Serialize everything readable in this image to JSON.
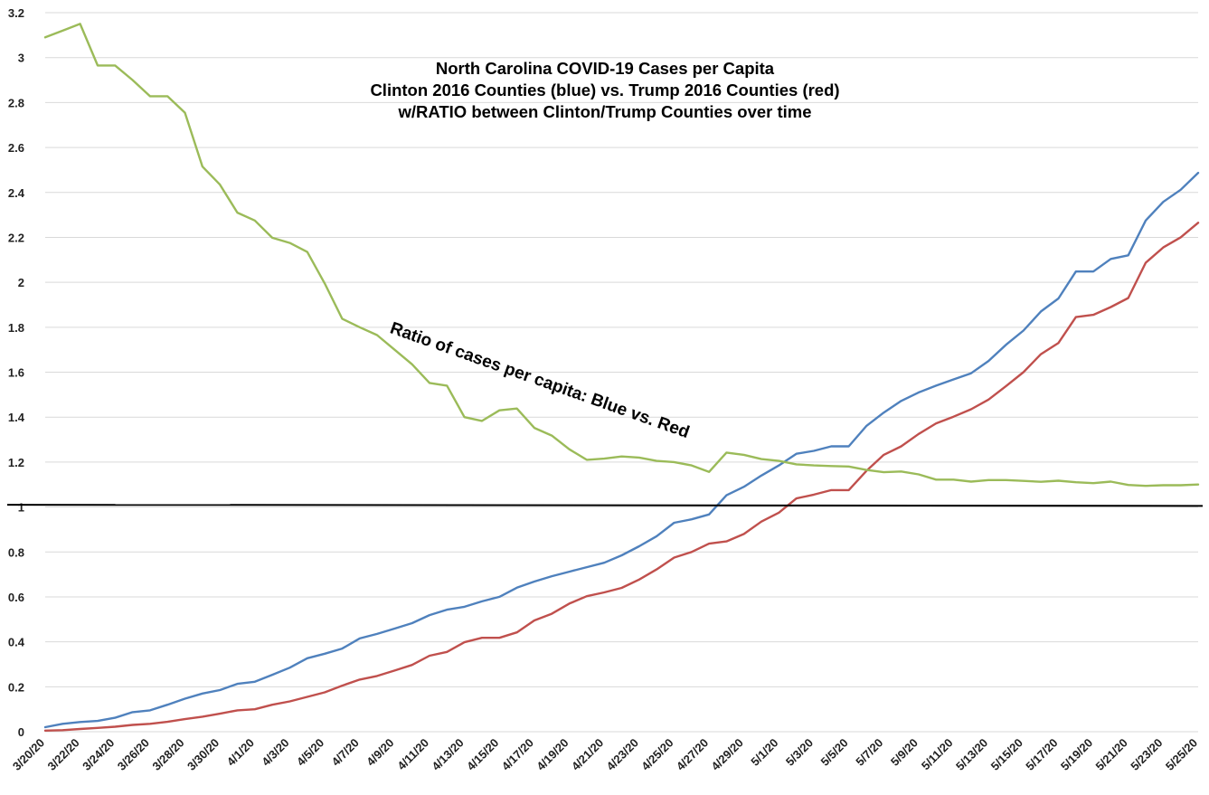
{
  "chart_data": {
    "type": "line",
    "title": [
      "North Carolina COVID-19 Cases per Capita",
      "Clinton 2016 Counties (blue) vs. Trump 2016 Counties (red)",
      "w/RATIO between Clinton/Trump Counties over time"
    ],
    "annotation": "Ratio of cases per capita: Blue vs. Red",
    "xlabel": "",
    "ylabel": "",
    "ylim": [
      0,
      3.2
    ],
    "yticks": [
      "0",
      "0.2",
      "0.4",
      "0.6",
      "0.8",
      "1",
      "1.2",
      "1.4",
      "1.6",
      "1.8",
      "2",
      "2.2",
      "2.4",
      "2.6",
      "2.8",
      "3",
      "3.2"
    ],
    "grid": true,
    "reference_line": {
      "y_start": 1.01,
      "y_end": 1.005,
      "color": "#000000"
    },
    "x": [
      "3/20/20",
      "3/21/20",
      "3/22/20",
      "3/23/20",
      "3/24/20",
      "3/25/20",
      "3/26/20",
      "3/27/20",
      "3/28/20",
      "3/29/20",
      "3/30/20",
      "3/31/20",
      "4/1/20",
      "4/2/20",
      "4/3/20",
      "4/4/20",
      "4/5/20",
      "4/6/20",
      "4/7/20",
      "4/8/20",
      "4/9/20",
      "4/10/20",
      "4/11/20",
      "4/12/20",
      "4/13/20",
      "4/14/20",
      "4/15/20",
      "4/16/20",
      "4/17/20",
      "4/18/20",
      "4/19/20",
      "4/20/20",
      "4/21/20",
      "4/22/20",
      "4/23/20",
      "4/24/20",
      "4/25/20",
      "4/26/20",
      "4/27/20",
      "4/28/20",
      "4/29/20",
      "4/30/20",
      "5/1/20",
      "5/2/20",
      "5/3/20",
      "5/4/20",
      "5/5/20",
      "5/6/20",
      "5/7/20",
      "5/8/20",
      "5/9/20",
      "5/10/20",
      "5/11/20",
      "5/12/20",
      "5/13/20",
      "5/14/20",
      "5/15/20",
      "5/16/20",
      "5/17/20",
      "5/18/20",
      "5/19/20",
      "5/20/20",
      "5/21/20",
      "5/22/20",
      "5/23/20",
      "5/24/20",
      "5/25/20"
    ],
    "xtick_labels": [
      "3/20/20",
      "3/22/20",
      "3/24/20",
      "3/26/20",
      "3/28/20",
      "3/30/20",
      "4/1/20",
      "4/3/20",
      "4/5/20",
      "4/7/20",
      "4/9/20",
      "4/11/20",
      "4/13/20",
      "4/15/20",
      "4/17/20",
      "4/19/20",
      "4/21/20",
      "4/23/20",
      "4/25/20",
      "4/27/20",
      "4/29/20",
      "5/1/20",
      "5/3/20",
      "5/5/20",
      "5/7/20",
      "5/9/20",
      "5/11/20",
      "5/13/20",
      "5/15/20",
      "5/17/20",
      "5/19/20",
      "5/21/20",
      "5/23/20",
      "5/25/20"
    ],
    "series": [
      {
        "color": "#4f81bd",
        "values": [
          0.02,
          0.035,
          0.043,
          0.048,
          0.062,
          0.087,
          0.095,
          0.12,
          0.147,
          0.17,
          0.185,
          0.213,
          0.222,
          0.253,
          0.285,
          0.327,
          0.347,
          0.37,
          0.415,
          0.435,
          0.459,
          0.483,
          0.519,
          0.543,
          0.556,
          0.58,
          0.6,
          0.641,
          0.668,
          0.692,
          0.712,
          0.732,
          0.752,
          0.785,
          0.825,
          0.87,
          0.93,
          0.945,
          0.967,
          1.052,
          1.09,
          1.14,
          1.185,
          1.237,
          1.25,
          1.27,
          1.27,
          1.36,
          1.42,
          1.472,
          1.51,
          1.54,
          1.568,
          1.595,
          1.65,
          1.722,
          1.785,
          1.87,
          1.928,
          2.048,
          2.048,
          2.104,
          2.12,
          2.275,
          2.358,
          2.412,
          2.487
        ]
      },
      {
        "color": "#c0504d",
        "values": [
          0.005,
          0.007,
          0.012,
          0.017,
          0.022,
          0.03,
          0.035,
          0.044,
          0.056,
          0.067,
          0.08,
          0.095,
          0.1,
          0.12,
          0.135,
          0.155,
          0.175,
          0.205,
          0.232,
          0.248,
          0.272,
          0.297,
          0.338,
          0.355,
          0.398,
          0.418,
          0.418,
          0.442,
          0.495,
          0.525,
          0.57,
          0.603,
          0.62,
          0.64,
          0.677,
          0.722,
          0.775,
          0.8,
          0.837,
          0.847,
          0.88,
          0.935,
          0.975,
          1.038,
          1.055,
          1.075,
          1.075,
          1.16,
          1.232,
          1.27,
          1.325,
          1.372,
          1.402,
          1.435,
          1.478,
          1.538,
          1.6,
          1.68,
          1.73,
          1.845,
          1.855,
          1.89,
          1.93,
          2.087,
          2.155,
          2.2,
          2.265
        ]
      },
      {
        "color": "#9bbb59",
        "values": [
          3.09,
          3.12,
          3.15,
          2.965,
          2.965,
          2.9,
          2.828,
          2.828,
          2.755,
          2.515,
          2.435,
          2.31,
          2.275,
          2.198,
          2.175,
          2.135,
          1.995,
          1.838,
          1.8,
          1.765,
          1.7,
          1.635,
          1.552,
          1.54,
          1.4,
          1.383,
          1.43,
          1.438,
          1.352,
          1.318,
          1.257,
          1.21,
          1.215,
          1.225,
          1.22,
          1.205,
          1.2,
          1.185,
          1.156,
          1.242,
          1.232,
          1.213,
          1.205,
          1.19,
          1.185,
          1.182,
          1.18,
          1.165,
          1.155,
          1.158,
          1.145,
          1.122,
          1.122,
          1.113,
          1.12,
          1.12,
          1.116,
          1.112,
          1.117,
          1.11,
          1.106,
          1.113,
          1.098,
          1.094,
          1.097,
          1.097,
          1.1
        ]
      }
    ]
  }
}
